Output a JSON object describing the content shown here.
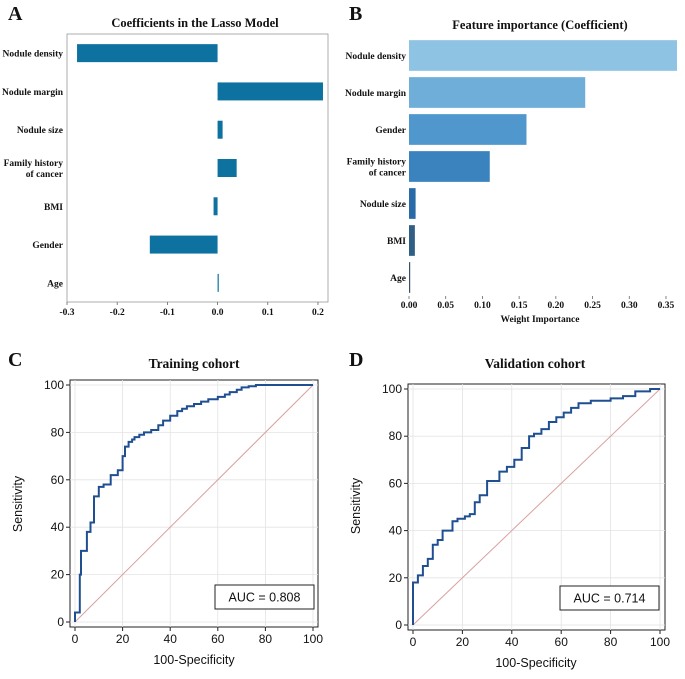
{
  "chart_data": [
    {
      "panel": "A",
      "type": "bar",
      "orientation": "horizontal",
      "title": "Coefficients in the Lasso Model",
      "categories": [
        "Nodule density",
        "Nodule margin",
        "Nodule size",
        "Family history of cancer",
        "BMI",
        "Gender",
        "Age"
      ],
      "category_lines": [
        [
          "Nodule density"
        ],
        [
          "Nodule margin"
        ],
        [
          "Nodule size"
        ],
        [
          "Family history",
          "of cancer"
        ],
        [
          "BMI"
        ],
        [
          "Gender"
        ],
        [
          "Age"
        ]
      ],
      "values": [
        -0.28,
        0.21,
        0.01,
        0.038,
        -0.008,
        -0.135,
        0.001
      ],
      "xlim": [
        -0.3,
        0.22
      ],
      "xticks": [
        -0.3,
        -0.2,
        -0.1,
        0.0,
        0.1,
        0.2
      ],
      "xtick_labels": [
        "-0.3",
        "-0.2",
        "-0.1",
        "0.0",
        "0.1",
        "0.2"
      ],
      "xlabel": "",
      "ylabel": "",
      "bar_color": "#0e72a0"
    },
    {
      "panel": "B",
      "type": "bar",
      "orientation": "horizontal",
      "title": "Feature importance (Coefficient)",
      "categories": [
        "Nodule density",
        "Nodule margin",
        "Gender",
        "Family history of cancer",
        "Nodule size",
        "BMI",
        "Age"
      ],
      "category_lines": [
        [
          "Nodule density"
        ],
        [
          "Nodule margin"
        ],
        [
          "Gender"
        ],
        [
          "Family history",
          "of cancer"
        ],
        [
          "Nodule size"
        ],
        [
          "BMI"
        ],
        [
          "Age"
        ]
      ],
      "values": [
        0.365,
        0.24,
        0.16,
        0.11,
        0.009,
        0.008,
        0.001
      ],
      "xlim": [
        0,
        0.365
      ],
      "xticks": [
        0,
        0.05,
        0.1,
        0.15,
        0.2,
        0.25,
        0.3,
        0.35
      ],
      "xtick_labels": [
        "0.00",
        "0.05",
        "0.10",
        "0.15",
        "0.20",
        "0.25",
        "0.30",
        "0.35"
      ],
      "xlabel": "Weight Importance",
      "ylabel": "",
      "bar_colors": [
        "#8fc3e3",
        "#6eaed9",
        "#4f97cc",
        "#3a83bf",
        "#2a6ba7",
        "#305f86",
        "#3a4f68"
      ]
    },
    {
      "panel": "C",
      "type": "line",
      "title": "Training cohort",
      "xlabel": "100-Specificity",
      "ylabel": "Sensitivity",
      "xlim": [
        0,
        100
      ],
      "ylim": [
        0,
        100
      ],
      "ticks": [
        0,
        20,
        40,
        60,
        80,
        100
      ],
      "auc_label": "AUC = 0.808",
      "x": [
        0,
        0,
        2,
        2,
        2.5,
        2.5,
        5,
        5,
        6.5,
        6.5,
        8,
        8,
        10,
        10,
        12,
        12,
        15,
        15,
        18,
        18,
        20,
        20,
        21,
        21,
        22.5,
        22.5,
        24,
        24,
        25,
        25,
        27,
        27,
        29,
        29,
        32,
        32,
        35,
        35,
        37,
        37,
        40,
        40,
        43,
        43,
        45,
        45,
        47,
        47,
        50,
        50,
        53,
        53,
        56,
        56,
        60,
        60,
        63,
        63,
        65,
        65,
        68,
        68,
        70,
        70,
        73,
        73,
        76,
        76,
        80,
        80,
        100
      ],
      "y": [
        0,
        4,
        4,
        20,
        20,
        30,
        30,
        38,
        38,
        42,
        42,
        53,
        53,
        57,
        57,
        58,
        58,
        62,
        62,
        64,
        64,
        70,
        70,
        74,
        74,
        76,
        76,
        77,
        77,
        78,
        78,
        79,
        79,
        80,
        80,
        81,
        81,
        83,
        83,
        85,
        85,
        87,
        87,
        89,
        89,
        90,
        90,
        91,
        91,
        92,
        92,
        93,
        93,
        94,
        94,
        95,
        95,
        96,
        96,
        97,
        97,
        98,
        98,
        99,
        99,
        99.5,
        99.5,
        100,
        100,
        100,
        100
      ],
      "series_color": "#1f4f91",
      "reference_color": "#d9a0a0"
    },
    {
      "panel": "D",
      "type": "line",
      "title": "Validation cohort",
      "xlabel": "100-Specificity",
      "ylabel": "Sensitivity",
      "xlim": [
        0,
        100
      ],
      "ylim": [
        0,
        100
      ],
      "ticks": [
        0,
        20,
        40,
        60,
        80,
        100
      ],
      "auc_label": "AUC = 0.714",
      "x": [
        0,
        0,
        2,
        2,
        4,
        4,
        6,
        6,
        8,
        8,
        10,
        10,
        12,
        12,
        16,
        16,
        18,
        18,
        21,
        21,
        23,
        23,
        25,
        25,
        27,
        27,
        30,
        30,
        35,
        35,
        38,
        38,
        41,
        41,
        44,
        44,
        47,
        47,
        49,
        49,
        52,
        52,
        55,
        55,
        58,
        58,
        61,
        61,
        64,
        64,
        67,
        67,
        72,
        72,
        80,
        80,
        85,
        85,
        90,
        90,
        96,
        96,
        100
      ],
      "y": [
        0,
        18,
        18,
        21,
        21,
        25,
        25,
        28,
        28,
        34,
        34,
        36,
        36,
        40,
        40,
        44,
        44,
        45,
        45,
        46,
        46,
        47,
        47,
        52,
        52,
        55,
        55,
        61,
        61,
        65,
        65,
        67,
        67,
        70,
        70,
        75,
        75,
        80,
        80,
        81,
        81,
        83,
        83,
        86,
        86,
        88,
        88,
        90,
        90,
        92,
        92,
        94,
        94,
        95,
        95,
        96,
        96,
        97,
        97,
        99,
        99,
        100,
        100
      ],
      "series_color": "#1f4f91",
      "reference_color": "#d9a0a0"
    }
  ],
  "panels": {
    "a": {
      "letter": "A"
    },
    "b": {
      "letter": "B"
    },
    "c": {
      "letter": "C"
    },
    "d": {
      "letter": "D"
    }
  }
}
